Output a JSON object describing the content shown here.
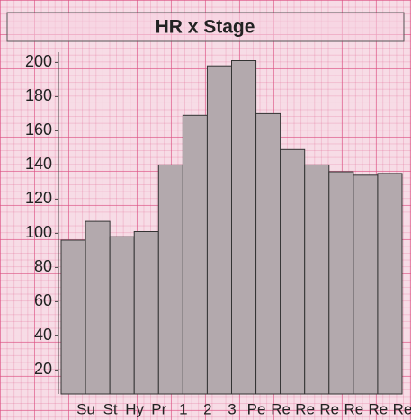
{
  "chart_data": {
    "type": "bar",
    "title": "HR x Stage",
    "categories": [
      "Su",
      "St",
      "Hy",
      "Pr",
      "1",
      "2",
      "3",
      "Pe",
      "Re",
      "Re",
      "Re",
      "Re",
      "Re",
      "Re"
    ],
    "values": [
      96,
      107,
      98,
      101,
      140,
      169,
      198,
      201,
      170,
      149,
      140,
      136,
      134,
      135
    ],
    "color": "#b3a9ad",
    "ylim": [
      6,
      206
    ],
    "yticks": [
      20,
      40,
      60,
      80,
      100,
      120,
      140,
      160,
      180,
      200
    ],
    "grid": false
  }
}
